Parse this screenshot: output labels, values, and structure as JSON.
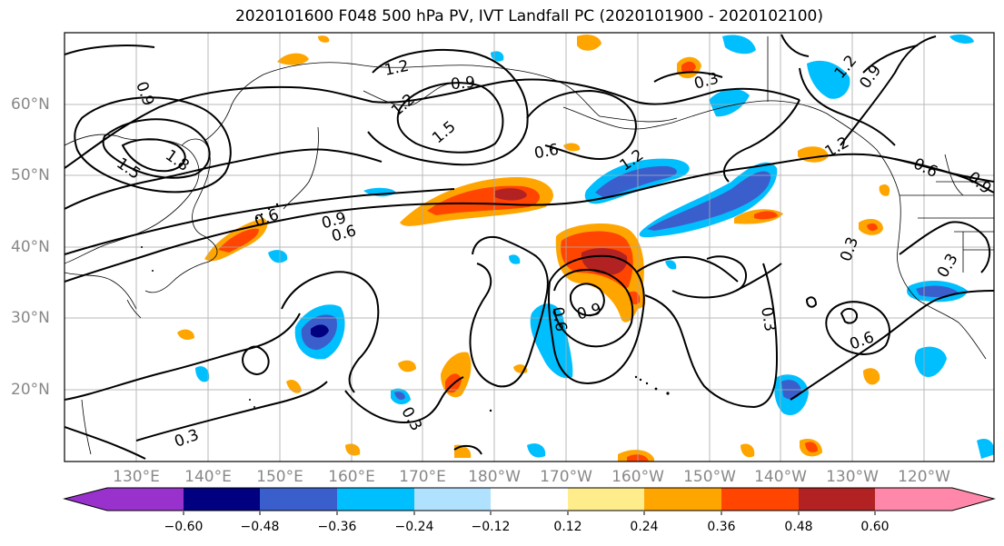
{
  "title": "2020101600 F048 500 hPa PV, IVT Landfall PC (2020101900 - 2020102100)",
  "map": {
    "lat_labels": [
      "60°N",
      "50°N",
      "40°N",
      "30°N",
      "20°N"
    ],
    "lon_labels": [
      "130°E",
      "140°E",
      "150°E",
      "160°E",
      "170°E",
      "180°W",
      "170°W",
      "160°W",
      "150°W",
      "140°W",
      "130°W",
      "120°W"
    ],
    "contour_labels": [
      "1.2",
      "1.2",
      "1.5",
      "1.5",
      "1.8",
      "0.9",
      "0.9",
      "0.9",
      "0.9",
      "0.9",
      "0.9",
      "0.6",
      "0.6",
      "0.6",
      "0.6",
      "0.6",
      "0.6",
      "0.3",
      "0.3",
      "0.3",
      "0.3",
      "0.3",
      "0.3",
      "1.2",
      "1.2",
      "1.2"
    ],
    "contour_color": "#000000",
    "grid": true,
    "land_outline_color": "#000000"
  },
  "colorbar": {
    "ticks": [
      "−0.60",
      "−0.48",
      "−0.36",
      "−0.24",
      "−0.12",
      "0.12",
      "0.24",
      "0.36",
      "0.48",
      "0.60"
    ],
    "colors": [
      "#9932cc",
      "#000080",
      "#3a5fcd",
      "#00bfff",
      "#b0e2ff",
      "#ffffff",
      "#ffec8b",
      "#ffa500",
      "#ff4500",
      "#b22222",
      "#ff88aa"
    ]
  }
}
